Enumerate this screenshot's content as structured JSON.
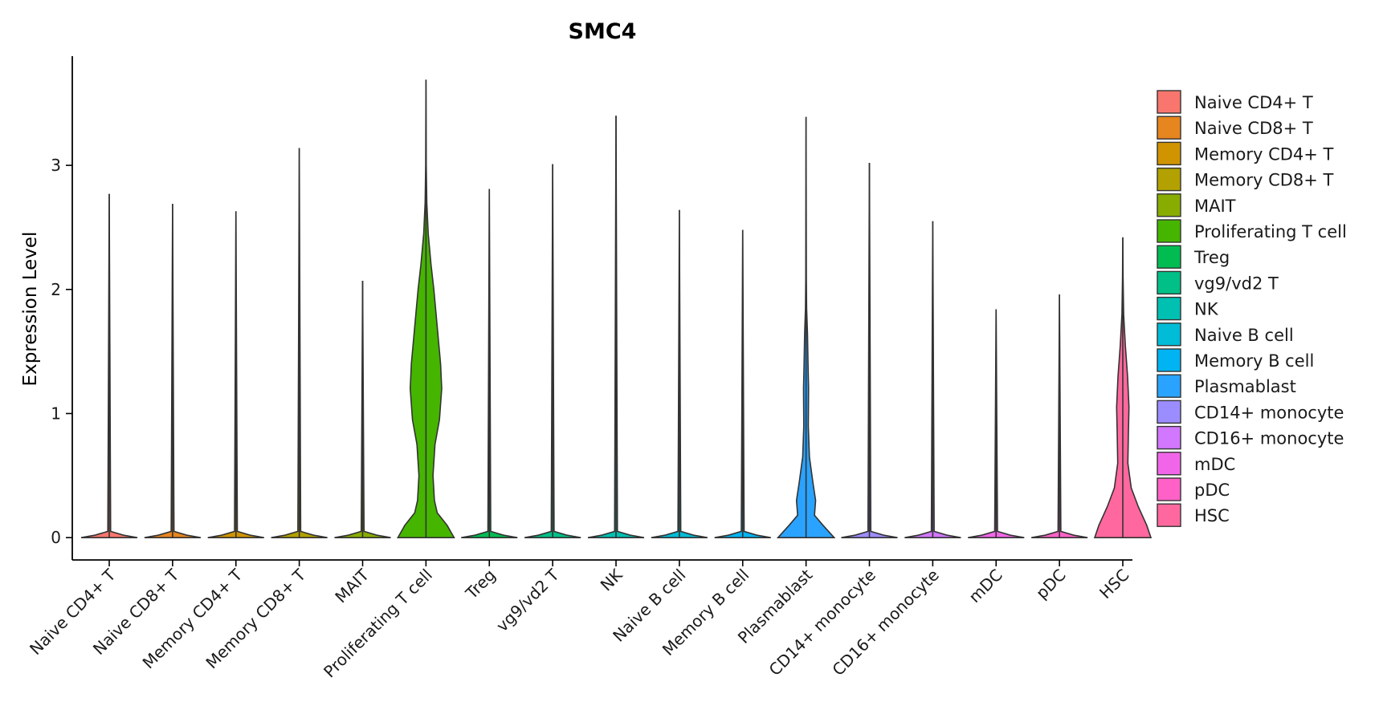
{
  "chart_data": {
    "type": "violin",
    "title": "SMC4",
    "xlabel": "",
    "ylabel": "Expression Level",
    "ylim": [
      -0.18,
      3.88
    ],
    "yticks": [
      0,
      1,
      2,
      3
    ],
    "ytick_labels": [
      "0",
      "1",
      "2",
      "3"
    ],
    "grid": false,
    "legend_position": "right",
    "categories": [
      "Naive CD4+ T",
      "Naive CD8+ T",
      "Memory CD4+ T",
      "Memory CD8+ T",
      "MAIT",
      "Proliferating T cell",
      "Treg",
      "vg9/vd2 T",
      "NK",
      "Naive B cell",
      "Memory B cell",
      "Plasmablast",
      "CD14+ monocyte",
      "CD16+ monocyte",
      "mDC",
      "pDC",
      "HSC"
    ],
    "colors": [
      "#F8766D",
      "#E58700",
      "#C99800",
      "#A3A500",
      "#6BB100",
      "#00BA38",
      "#00BF7D",
      "#00C0AF",
      "#00BCD8",
      "#00B0F6",
      "#619CFF",
      "#B983FF",
      "#E76BF3",
      "#FD61D1",
      "#FF67A4",
      "#F8766D",
      "#E58700"
    ],
    "series": [
      {
        "name": "Naive CD4+ T",
        "color": "#F8766D",
        "max": 2.77,
        "density": [
          [
            0,
            1
          ],
          [
            0.02,
            0.5
          ],
          [
            0.05,
            0.05
          ],
          [
            2.77,
            0
          ]
        ]
      },
      {
        "name": "Naive CD8+ T",
        "color": "#E58700",
        "max": 2.69,
        "density": [
          [
            0,
            1
          ],
          [
            0.02,
            0.5
          ],
          [
            0.05,
            0.05
          ],
          [
            2.69,
            0
          ]
        ]
      },
      {
        "name": "Memory CD4+ T",
        "color": "#C99800",
        "max": 2.63,
        "density": [
          [
            0,
            1
          ],
          [
            0.02,
            0.5
          ],
          [
            0.05,
            0.05
          ],
          [
            2.63,
            0
          ]
        ]
      },
      {
        "name": "Memory CD8+ T",
        "color": "#A3A500",
        "max": 3.14,
        "density": [
          [
            0,
            1
          ],
          [
            0.02,
            0.5
          ],
          [
            0.05,
            0.05
          ],
          [
            3.14,
            0
          ]
        ]
      },
      {
        "name": "MAIT",
        "color": "#6BB100",
        "max": 2.07,
        "density": [
          [
            0,
            1
          ],
          [
            0.02,
            0.5
          ],
          [
            0.05,
            0.05
          ],
          [
            2.07,
            0
          ]
        ]
      },
      {
        "name": "Proliferating T cell",
        "color": "#00BA38",
        "max": 3.69,
        "density": [
          [
            0,
            1
          ],
          [
            0.1,
            0.75
          ],
          [
            0.2,
            0.4
          ],
          [
            0.3,
            0.3
          ],
          [
            0.5,
            0.25
          ],
          [
            0.75,
            0.32
          ],
          [
            0.95,
            0.48
          ],
          [
            1.2,
            0.56
          ],
          [
            1.4,
            0.52
          ],
          [
            1.6,
            0.44
          ],
          [
            1.8,
            0.36
          ],
          [
            2.0,
            0.28
          ],
          [
            2.2,
            0.18
          ],
          [
            2.45,
            0.08
          ],
          [
            2.7,
            0.03
          ],
          [
            3.0,
            0.01
          ],
          [
            3.69,
            0
          ]
        ]
      },
      {
        "name": "Treg",
        "color": "#00BF7D",
        "max": 2.81,
        "density": [
          [
            0,
            1
          ],
          [
            0.02,
            0.5
          ],
          [
            0.05,
            0.05
          ],
          [
            2.81,
            0
          ]
        ]
      },
      {
        "name": "vg9/vd2 T",
        "color": "#00C0AF",
        "max": 3.01,
        "density": [
          [
            0,
            1
          ],
          [
            0.02,
            0.5
          ],
          [
            0.05,
            0.05
          ],
          [
            3.01,
            0
          ]
        ]
      },
      {
        "name": "NK",
        "color": "#00BCD8",
        "max": 3.4,
        "density": [
          [
            0,
            1
          ],
          [
            0.02,
            0.5
          ],
          [
            0.05,
            0.05
          ],
          [
            3.4,
            0
          ]
        ]
      },
      {
        "name": "Naive B cell",
        "color": "#00B0F6",
        "max": 2.64,
        "density": [
          [
            0,
            1
          ],
          [
            0.02,
            0.5
          ],
          [
            0.05,
            0.05
          ],
          [
            2.64,
            0
          ]
        ]
      },
      {
        "name": "Memory B cell",
        "color": "#619CFF",
        "max": 2.48,
        "density": [
          [
            0,
            1
          ],
          [
            0.02,
            0.5
          ],
          [
            0.05,
            0.05
          ],
          [
            2.48,
            0
          ]
        ]
      },
      {
        "name": "Plasmablast",
        "color": "#B983FF",
        "max": 3.39,
        "density": [
          [
            0,
            1
          ],
          [
            0.1,
            0.6
          ],
          [
            0.18,
            0.3
          ],
          [
            0.3,
            0.34
          ],
          [
            0.45,
            0.24
          ],
          [
            0.65,
            0.12
          ],
          [
            0.9,
            0.08
          ],
          [
            1.2,
            0.09
          ],
          [
            1.4,
            0.07
          ],
          [
            1.65,
            0.05
          ],
          [
            1.85,
            0.02
          ],
          [
            2.1,
            0.01
          ],
          [
            3.39,
            0
          ]
        ]
      },
      {
        "name": "CD14+ monocyte",
        "color": "#E76BF3",
        "max": 3.02,
        "density": [
          [
            0,
            1
          ],
          [
            0.02,
            0.5
          ],
          [
            0.05,
            0.05
          ],
          [
            3.02,
            0
          ]
        ]
      },
      {
        "name": "CD16+ monocyte",
        "color": "#FD61D1",
        "max": 2.55,
        "density": [
          [
            0,
            1
          ],
          [
            0.02,
            0.5
          ],
          [
            0.05,
            0.05
          ],
          [
            2.55,
            0
          ]
        ]
      },
      {
        "name": "mDC",
        "color": "#FF67A4",
        "max": 1.84,
        "density": [
          [
            0,
            1
          ],
          [
            0.02,
            0.5
          ],
          [
            0.05,
            0.05
          ],
          [
            1.84,
            0
          ]
        ]
      },
      {
        "name": "pDC",
        "color": "#F8766D",
        "max": 1.96,
        "density": [
          [
            0,
            1
          ],
          [
            0.02,
            0.5
          ],
          [
            0.05,
            0.05
          ],
          [
            1.96,
            0
          ]
        ]
      },
      {
        "name": "HSC",
        "color": "#E58700",
        "max": 2.42,
        "density": [
          [
            0,
            1
          ],
          [
            0.1,
            0.85
          ],
          [
            0.25,
            0.55
          ],
          [
            0.4,
            0.3
          ],
          [
            0.6,
            0.18
          ],
          [
            0.85,
            0.2
          ],
          [
            1.05,
            0.22
          ],
          [
            1.3,
            0.17
          ],
          [
            1.55,
            0.09
          ],
          [
            1.8,
            0.03
          ],
          [
            2.1,
            0.01
          ],
          [
            2.42,
            0
          ]
        ]
      }
    ]
  }
}
